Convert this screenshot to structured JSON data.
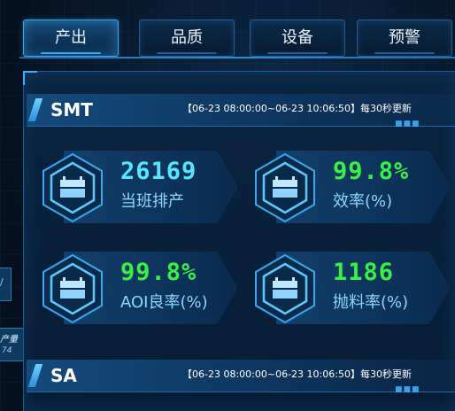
{
  "tabs": [
    {
      "label": "产出",
      "active": true
    },
    {
      "label": "品质",
      "active": false
    },
    {
      "label": "设备",
      "active": false
    },
    {
      "label": "预警",
      "active": false
    }
  ],
  "sections": [
    {
      "title": "SMT",
      "range": "【06-23 08:00:00~06-23 10:06:50】每30秒更新",
      "metrics": [
        {
          "value": "26169",
          "label": "当班排产",
          "color": "#56e6ff",
          "icon": "production-line-icon"
        },
        {
          "value": "99.8%",
          "label": "效率(%)",
          "color": "#39f046",
          "icon": "production-line-icon"
        },
        {
          "value": "99.8%",
          "label": "AOI良率(%)",
          "color": "#39f046",
          "icon": "production-line-icon"
        },
        {
          "value": "1186",
          "label": "抛料率(%)",
          "color": "#39f046",
          "icon": "production-line-icon"
        }
      ]
    },
    {
      "title": "SA",
      "range": "【06-23 08:00:00~06-23 10:06:50】每30秒更新"
    }
  ],
  "side": {
    "stub_top": "/",
    "stub_bottom_label": "产量",
    "stub_bottom_value": "74"
  },
  "decor": {
    "dots": "■■■"
  }
}
